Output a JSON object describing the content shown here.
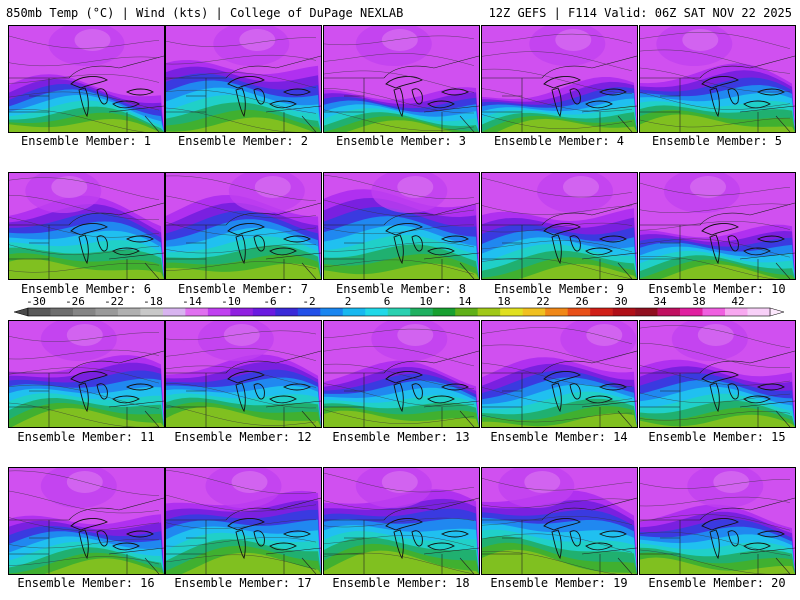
{
  "header": {
    "left": "850mb Temp (°C) | Wind (kts) | College of DuPage NEXLAB",
    "right": "12Z GEFS | F114 Valid: 06Z SAT NOV 22 2025"
  },
  "members": [
    {
      "label": "Ensemble Member: 1",
      "warm": 0.34,
      "cold_center": 0.5
    },
    {
      "label": "Ensemble Member: 2",
      "warm": 0.5,
      "cold_center": 0.55
    },
    {
      "label": "Ensemble Member: 3",
      "warm": 0.3,
      "cold_center": 0.45
    },
    {
      "label": "Ensemble Member: 4",
      "warm": 0.32,
      "cold_center": 0.55
    },
    {
      "label": "Ensemble Member: 5",
      "warm": 0.42,
      "cold_center": 0.35
    },
    {
      "label": "Ensemble Member: 6",
      "warm": 0.52,
      "cold_center": 0.35
    },
    {
      "label": "Ensemble Member: 7",
      "warm": 0.55,
      "cold_center": 0.65
    },
    {
      "label": "Ensemble Member: 8",
      "warm": 0.62,
      "cold_center": 0.55
    },
    {
      "label": "Ensemble Member: 9",
      "warm": 0.5,
      "cold_center": 0.6
    },
    {
      "label": "Ensemble Member: 10",
      "warm": 0.36,
      "cold_center": 0.4
    },
    {
      "label": "Ensemble Member: 11",
      "warm": 0.45,
      "cold_center": 0.45
    },
    {
      "label": "Ensemble Member: 12",
      "warm": 0.44,
      "cold_center": 0.45
    },
    {
      "label": "Ensemble Member: 13",
      "warm": 0.4,
      "cold_center": 0.55
    },
    {
      "label": "Ensemble Member: 14",
      "warm": 0.48,
      "cold_center": 0.75
    },
    {
      "label": "Ensemble Member: 15",
      "warm": 0.46,
      "cold_center": 0.45
    },
    {
      "label": "Ensemble Member: 16",
      "warm": 0.42,
      "cold_center": 0.45
    },
    {
      "label": "Ensemble Member: 17",
      "warm": 0.55,
      "cold_center": 0.5
    },
    {
      "label": "Ensemble Member: 18",
      "warm": 0.55,
      "cold_center": 0.45
    },
    {
      "label": "Ensemble Member: 19",
      "warm": 0.55,
      "cold_center": 0.35
    },
    {
      "label": "Ensemble Member: 20",
      "warm": 0.45,
      "cold_center": 0.55
    }
  ],
  "colorbar": {
    "labels": [
      "-30",
      "-26",
      "-22",
      "-18",
      "-14",
      "-10",
      "-6",
      "-2",
      "2",
      "6",
      "10",
      "14",
      "18",
      "22",
      "26",
      "30",
      "34",
      "38",
      "42"
    ],
    "colors": [
      "#5a5a5a",
      "#6e6e6e",
      "#858585",
      "#9a9a9a",
      "#b0b0b0",
      "#c8c8c8",
      "#d8b4f0",
      "#e070f0",
      "#c040f0",
      "#9020e0",
      "#6a1ae0",
      "#3a2ad8",
      "#2250e8",
      "#1a86f0",
      "#18b8f0",
      "#20d8e8",
      "#2ad0b0",
      "#20b060",
      "#18a030",
      "#60b018",
      "#a0c818",
      "#e0e020",
      "#f0c020",
      "#f08818",
      "#e85018",
      "#d02018",
      "#b01018",
      "#901020",
      "#c01060",
      "#e020a0",
      "#f060e0",
      "#f8a8f0",
      "#f8d0f8"
    ]
  }
}
